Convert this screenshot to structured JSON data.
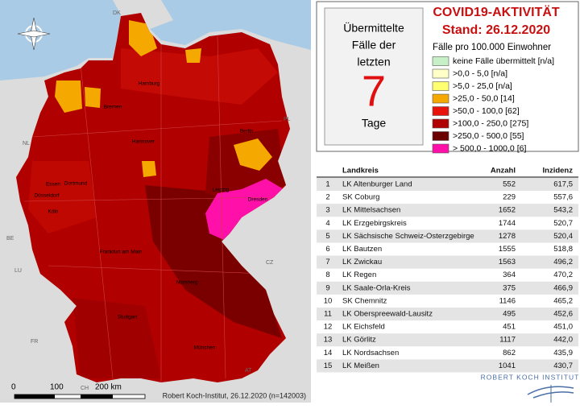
{
  "map": {
    "countries": [
      "DK",
      "NL",
      "PL",
      "BE",
      "LU",
      "FR",
      "CZ",
      "AT",
      "CH"
    ],
    "cities": [
      "Hamburg",
      "Bremen",
      "Hannover",
      "Berlin",
      "Leipzig",
      "Dresden",
      "Essen",
      "Dortmund",
      "Düsseldorf",
      "Köln",
      "Frankfurt am Main",
      "Nürnberg",
      "Stuttgart",
      "München"
    ],
    "scale": [
      "0",
      "100",
      "200 km"
    ],
    "credit": "Robert Koch-Institut, 26.12.2020 (n=142003)"
  },
  "box": {
    "line1": "Übermittelte",
    "line2": "Fälle der",
    "line3": "letzten",
    "number": "7",
    "line4": "Tage"
  },
  "header": {
    "title": "COVID19-AKTIVITÄT",
    "date": "Stand: 26.12.2020",
    "subtitle": "Fälle pro 100.000 Einwohner"
  },
  "legend": {
    "items": [
      {
        "label": "keine Fälle übermittelt [n/a]",
        "color": "#c8f0c8"
      },
      {
        "label": ">0,0 - 5,0 [n/a]",
        "color": "#ffffc8"
      },
      {
        "label": ">5,0 - 25,0 [n/a]",
        "color": "#ffff70"
      },
      {
        "label": ">25,0 - 50,0 [14]",
        "color": "#f5a800"
      },
      {
        "label": ">50,0 - 100,0 [62]",
        "color": "#e8140c"
      },
      {
        "label": ">100,0 - 250,0 [275]",
        "color": "#b00000"
      },
      {
        "label": ">250,0 - 500,0 [55]",
        "color": "#6a0000"
      },
      {
        "label": "> 500,0 - 1000,0 [6]",
        "color": "#ff10a8"
      }
    ]
  },
  "table": {
    "columns": [
      "Landkreis",
      "Anzahl",
      "Inzidenz"
    ],
    "rows": [
      [
        1,
        "LK Altenburger Land",
        552,
        "617,5"
      ],
      [
        2,
        "SK Coburg",
        229,
        "557,6"
      ],
      [
        3,
        "LK Mittelsachsen",
        1652,
        "543,2"
      ],
      [
        4,
        "LK Erzgebirgskreis",
        1744,
        "520,7"
      ],
      [
        5,
        "LK Sächsische Schweiz-Osterzgebirge",
        1278,
        "520,4"
      ],
      [
        6,
        "LK Bautzen",
        1555,
        "518,8"
      ],
      [
        7,
        "LK Zwickau",
        1563,
        "496,2"
      ],
      [
        8,
        "LK Regen",
        364,
        "470,2"
      ],
      [
        9,
        "LK Saale-Orla-Kreis",
        375,
        "466,9"
      ],
      [
        10,
        "SK Chemnitz",
        1146,
        "465,2"
      ],
      [
        11,
        "LK Oberspreewald-Lausitz",
        495,
        "452,6"
      ],
      [
        12,
        "LK Eichsfeld",
        451,
        "451,0"
      ],
      [
        13,
        "LK Görlitz",
        1117,
        "442,0"
      ],
      [
        14,
        "LK Nordsachsen",
        862,
        "435,9"
      ],
      [
        15,
        "LK Meißen",
        1041,
        "430,7"
      ]
    ]
  },
  "logo": "ROBERT KOCH INSTITUT"
}
